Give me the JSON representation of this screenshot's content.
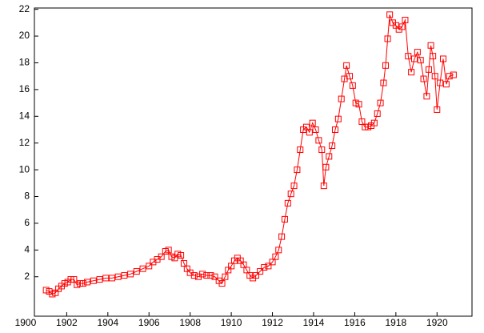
{
  "chart_data": {
    "type": "line",
    "color": "#ff0000",
    "marker": "square",
    "x": [
      1901.0,
      1901.15,
      1901.3,
      1901.45,
      1901.6,
      1901.75,
      1901.9,
      1902.05,
      1902.2,
      1902.35,
      1902.5,
      1902.65,
      1902.8,
      1903.0,
      1903.3,
      1903.6,
      1903.9,
      1904.2,
      1904.5,
      1904.8,
      1905.1,
      1905.4,
      1905.7,
      1906.0,
      1906.2,
      1906.4,
      1906.6,
      1906.8,
      1906.95,
      1907.1,
      1907.25,
      1907.4,
      1907.55,
      1907.7,
      1907.85,
      1908.0,
      1908.2,
      1908.4,
      1908.6,
      1908.8,
      1909.0,
      1909.2,
      1909.4,
      1909.55,
      1909.7,
      1909.85,
      1910.0,
      1910.15,
      1910.3,
      1910.45,
      1910.6,
      1910.75,
      1910.9,
      1911.05,
      1911.2,
      1911.4,
      1911.6,
      1911.8,
      1912.0,
      1912.15,
      1912.3,
      1912.45,
      1912.6,
      1912.75,
      1912.9,
      1913.05,
      1913.2,
      1913.35,
      1913.5,
      1913.65,
      1913.8,
      1913.95,
      1914.1,
      1914.25,
      1914.4,
      1914.5,
      1914.6,
      1914.75,
      1914.9,
      1915.05,
      1915.2,
      1915.35,
      1915.5,
      1915.6,
      1915.75,
      1915.9,
      1916.05,
      1916.2,
      1916.35,
      1916.5,
      1916.65,
      1916.8,
      1916.95,
      1917.1,
      1917.25,
      1917.4,
      1917.5,
      1917.6,
      1917.7,
      1917.85,
      1918.0,
      1918.15,
      1918.3,
      1918.45,
      1918.6,
      1918.75,
      1918.9,
      1919.05,
      1919.2,
      1919.35,
      1919.5,
      1919.6,
      1919.7,
      1919.8,
      1919.9,
      1920.0,
      1920.15,
      1920.3,
      1920.45,
      1920.6,
      1920.8
    ],
    "values": [
      1.0,
      0.9,
      0.7,
      0.8,
      1.1,
      1.3,
      1.5,
      1.6,
      1.8,
      1.8,
      1.4,
      1.5,
      1.5,
      1.6,
      1.7,
      1.8,
      1.9,
      1.9,
      2.0,
      2.1,
      2.2,
      2.4,
      2.6,
      2.8,
      3.1,
      3.3,
      3.5,
      3.9,
      4.0,
      3.5,
      3.4,
      3.7,
      3.6,
      3.0,
      2.6,
      2.3,
      2.1,
      2.0,
      2.2,
      2.1,
      2.1,
      2.0,
      1.7,
      1.5,
      2.0,
      2.5,
      2.8,
      3.2,
      3.4,
      3.2,
      2.9,
      2.5,
      2.1,
      1.9,
      2.1,
      2.4,
      2.7,
      2.8,
      3.1,
      3.5,
      4.0,
      5.0,
      6.3,
      7.5,
      8.2,
      8.8,
      10.0,
      11.5,
      13.0,
      13.2,
      12.8,
      13.5,
      13.0,
      12.2,
      11.5,
      8.8,
      10.2,
      11.0,
      11.8,
      13.0,
      13.8,
      15.3,
      16.8,
      17.8,
      17.0,
      16.3,
      15.0,
      14.9,
      13.6,
      13.2,
      13.2,
      13.3,
      13.5,
      14.2,
      15.0,
      16.5,
      17.8,
      19.8,
      21.6,
      21.0,
      20.8,
      20.5,
      20.7,
      21.2,
      18.5,
      17.3,
      18.3,
      18.8,
      18.2,
      16.8,
      15.5,
      17.5,
      19.3,
      18.5,
      17.0,
      14.5,
      16.5,
      18.3,
      16.4,
      17.0,
      17.1
    ],
    "xlim": [
      1900.43,
      1921.7
    ],
    "ylim": [
      -0.95,
      22.1
    ],
    "xticks": [
      1900,
      1902,
      1904,
      1906,
      1908,
      1910,
      1912,
      1914,
      1916,
      1918,
      1920
    ],
    "yticks": [
      2,
      4,
      6,
      8,
      10,
      12,
      14,
      16,
      18,
      20,
      22
    ]
  }
}
